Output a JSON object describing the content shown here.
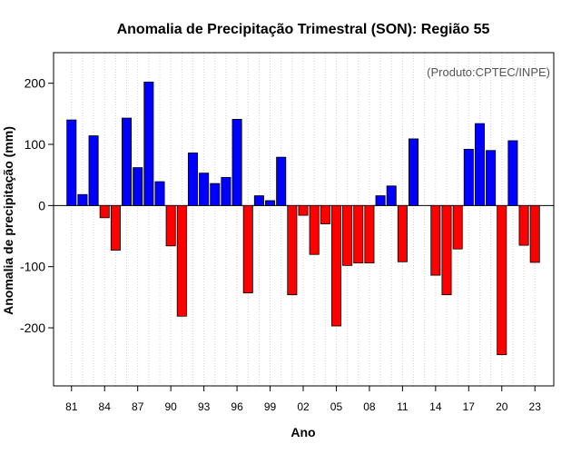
{
  "chart_data": {
    "type": "bar",
    "title": "Anomalia de Precipitação Trimestral (SON): Região 55",
    "xlabel": "Ano",
    "ylabel": "Anomalia de precipitação (mm)",
    "annotation": "(Produto:CPTEC/INPE)",
    "ylim": [
      -295,
      250
    ],
    "yticks": [
      -200,
      -100,
      0,
      100,
      200
    ],
    "xtick_labels": [
      "81",
      "84",
      "87",
      "90",
      "93",
      "96",
      "99",
      "02",
      "05",
      "08",
      "11",
      "14",
      "17",
      "20",
      "23"
    ],
    "xtick_every": 3,
    "grid": true,
    "positive_color": "#0000ff",
    "negative_color": "#ff0000",
    "categories": [
      "1981",
      "1982",
      "1983",
      "1984",
      "1985",
      "1986",
      "1987",
      "1988",
      "1989",
      "1990",
      "1991",
      "1992",
      "1993",
      "1994",
      "1995",
      "1996",
      "1997",
      "1998",
      "1999",
      "2000",
      "2001",
      "2002",
      "2003",
      "2004",
      "2005",
      "2006",
      "2007",
      "2008",
      "2009",
      "2010",
      "2011",
      "2012",
      "2013",
      "2014",
      "2015",
      "2016",
      "2017",
      "2018",
      "2019",
      "2020",
      "2021",
      "2022",
      "2023"
    ],
    "values": [
      140,
      18,
      114,
      -20,
      -73,
      143,
      62,
      202,
      39,
      -66,
      -181,
      86,
      53,
      36,
      46,
      141,
      -143,
      16,
      8,
      79,
      -146,
      -16,
      -80,
      -30,
      -197,
      -98,
      -94,
      -94,
      16,
      32,
      -92,
      109,
      0,
      -114,
      -146,
      -71,
      92,
      134,
      90,
      -244,
      106,
      -65,
      -93
    ]
  }
}
